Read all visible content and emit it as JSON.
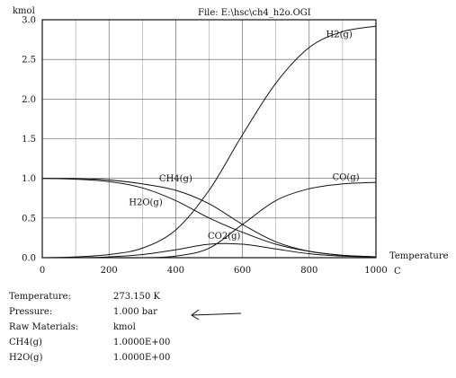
{
  "chart_data": {
    "type": "line",
    "file_label": "File: E:\\hsc\\ch4_h2o.OGI",
    "ylabel": "kmol",
    "xlabel": "Temperature",
    "xunit": "C",
    "xlim": [
      0,
      1000
    ],
    "ylim": [
      0,
      3.0
    ],
    "xticks": [
      "0",
      "200",
      "400",
      "600",
      "800",
      "1000"
    ],
    "yticks": [
      "0.0",
      "0.5",
      "1.0",
      "1.5",
      "2.0",
      "2.5",
      "3.0"
    ],
    "grid": true,
    "series": [
      {
        "name": "H2(g)",
        "x": [
          0,
          100,
          200,
          300,
          400,
          500,
          600,
          700,
          800,
          900,
          1000
        ],
        "y": [
          0,
          0.01,
          0.04,
          0.12,
          0.35,
          0.85,
          1.55,
          2.2,
          2.65,
          2.85,
          2.92
        ]
      },
      {
        "name": "CH4(g)",
        "x": [
          0,
          100,
          200,
          300,
          400,
          500,
          600,
          700,
          800,
          900,
          1000
        ],
        "y": [
          1.0,
          1.0,
          0.98,
          0.93,
          0.85,
          0.68,
          0.42,
          0.2,
          0.08,
          0.03,
          0.01
        ]
      },
      {
        "name": "H2O(g)",
        "x": [
          0,
          100,
          200,
          300,
          400,
          500,
          600,
          700,
          800,
          900,
          1000
        ],
        "y": [
          1.0,
          0.99,
          0.96,
          0.88,
          0.72,
          0.5,
          0.32,
          0.17,
          0.08,
          0.03,
          0.01
        ]
      },
      {
        "name": "CO(g)",
        "x": [
          0,
          100,
          200,
          300,
          400,
          500,
          600,
          700,
          800,
          900,
          1000
        ],
        "y": [
          0,
          0,
          0,
          0,
          0.02,
          0.12,
          0.42,
          0.72,
          0.87,
          0.93,
          0.95
        ]
      },
      {
        "name": "CO2(g)",
        "x": [
          0,
          100,
          200,
          300,
          400,
          500,
          600,
          700,
          800,
          900,
          1000
        ],
        "y": [
          0,
          0,
          0.01,
          0.04,
          0.1,
          0.17,
          0.17,
          0.11,
          0.05,
          0.02,
          0.01
        ]
      }
    ],
    "labels": [
      {
        "text": "H2(g)",
        "x": 890,
        "y": 2.78
      },
      {
        "text": "CH4(g)",
        "x": 400,
        "y": 0.96
      },
      {
        "text": "H2O(g)",
        "x": 310,
        "y": 0.66
      },
      {
        "text": "CO(g)",
        "x": 910,
        "y": 0.98
      },
      {
        "text": "CO2(g)",
        "x": 545,
        "y": 0.24
      }
    ]
  },
  "info": {
    "rows": [
      {
        "label": "Temperature:",
        "value": "273.150 K"
      },
      {
        "label": "Pressure:",
        "value": "1.000 bar"
      },
      {
        "label": "Raw Materials:",
        "value": "kmol"
      },
      {
        "label": "CH4(g)",
        "value": "1.0000E+00"
      },
      {
        "label": "H2O(g)",
        "value": "1.0000E+00"
      }
    ]
  }
}
